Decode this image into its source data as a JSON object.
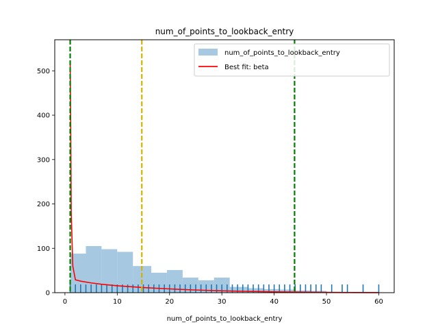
{
  "chart_data": {
    "type": "bar",
    "title": "num_of_points_to_lookback_entry",
    "xlabel": "num_of_points_to_lookback_entry",
    "ylabel": "",
    "xlim": [
      -1.95,
      62.95
    ],
    "ylim": [
      0,
      570
    ],
    "xticks": [
      0,
      10,
      20,
      30,
      40,
      50,
      60
    ],
    "yticks": [
      0,
      100,
      200,
      300,
      400,
      500
    ],
    "grid": false,
    "legend_position": "top-right",
    "histogram": {
      "name": "num_of_points_to_lookback_entry",
      "color": "#a6c8e0",
      "bins": [
        {
          "x0": 1.0,
          "x1": 4.0,
          "value": 88
        },
        {
          "x0": 4.0,
          "x1": 7.0,
          "value": 105
        },
        {
          "x0": 7.0,
          "x1": 10.0,
          "value": 98
        },
        {
          "x0": 10.0,
          "x1": 13.0,
          "value": 92
        },
        {
          "x0": 13.0,
          "x1": 16.5,
          "value": 60
        },
        {
          "x0": 16.5,
          "x1": 19.5,
          "value": 45
        },
        {
          "x0": 19.5,
          "x1": 22.5,
          "value": 51
        },
        {
          "x0": 22.5,
          "x1": 25.5,
          "value": 34
        },
        {
          "x0": 25.5,
          "x1": 28.5,
          "value": 28
        },
        {
          "x0": 28.5,
          "x1": 31.5,
          "value": 34
        },
        {
          "x0": 31.5,
          "x1": 35.0,
          "value": 13
        },
        {
          "x0": 35.0,
          "x1": 38.0,
          "value": 10
        },
        {
          "x0": 38.0,
          "x1": 41.0,
          "value": 8
        },
        {
          "x0": 41.0,
          "x1": 44.0,
          "value": 7
        },
        {
          "x0": 44.0,
          "x1": 47.0,
          "value": 5
        },
        {
          "x0": 47.0,
          "x1": 50.0,
          "value": 4
        },
        {
          "x0": 50.0,
          "x1": 53.0,
          "value": 2
        },
        {
          "x0": 53.0,
          "x1": 56.0,
          "value": 2
        },
        {
          "x0": 56.0,
          "x1": 60.0,
          "value": 2
        }
      ]
    },
    "rug": {
      "color": "#1f77b4",
      "height": 12,
      "x": [
        1,
        2,
        3,
        4,
        5,
        6,
        7,
        8,
        9,
        10,
        11,
        12,
        13,
        14,
        15,
        16,
        17,
        18,
        19,
        20,
        21,
        22,
        23,
        24,
        25,
        26,
        27,
        28,
        29,
        30,
        31,
        32,
        33,
        34,
        35,
        36,
        37,
        38,
        39,
        40,
        41,
        42,
        43,
        44,
        45,
        46,
        47,
        48,
        49,
        51,
        53,
        54,
        57,
        60
      ]
    },
    "fit": {
      "name": "Best fit: beta",
      "color": "#ff0000",
      "x": [
        1.0,
        1.1,
        1.2,
        1.5,
        2,
        3,
        5,
        7,
        10,
        15,
        20,
        25,
        30,
        35,
        40,
        45,
        50,
        55,
        60
      ],
      "y": [
        520,
        380,
        180,
        60,
        29,
        26,
        22,
        19,
        15.5,
        11.5,
        8.5,
        6,
        4.2,
        2.9,
        1.9,
        1.2,
        0.7,
        0.3,
        0.1
      ]
    },
    "vlines": [
      {
        "x": 1.0,
        "color": "#008000"
      },
      {
        "x": 14.7,
        "color": "#d4b400"
      },
      {
        "x": 43.9,
        "color": "#008000"
      }
    ],
    "legend": [
      {
        "label": "num_of_points_to_lookback_entry",
        "kind": "patch",
        "color": "#a6c8e0"
      },
      {
        "label": "Best fit: beta",
        "kind": "line",
        "color": "#ff0000"
      }
    ]
  }
}
